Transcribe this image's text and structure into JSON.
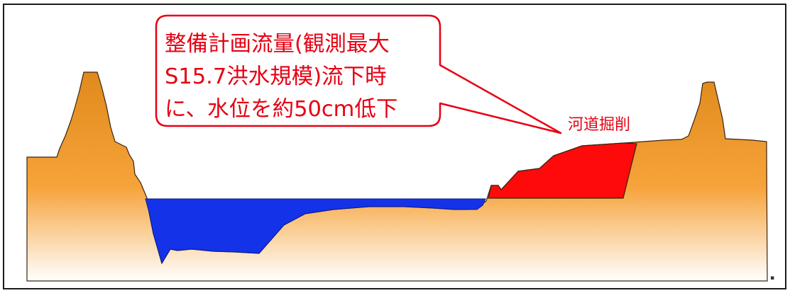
{
  "callout": {
    "lines": [
      "整備計画流量(観測最大",
      "S15.7洪水規模)流下時",
      "に、水位を約50cm低下"
    ]
  },
  "annotation": {
    "label": "河道掘削"
  },
  "corner_mark": "▪",
  "colors": {
    "callout_text": "#e60012",
    "callout_border": "#e60012",
    "ground_top": "#e08a1c",
    "ground_bottom": "#ffffff",
    "water": "#1432e8",
    "excavation": "#ff0a0a",
    "outline": "#3a2410",
    "frame": "#1a1a1a"
  }
}
